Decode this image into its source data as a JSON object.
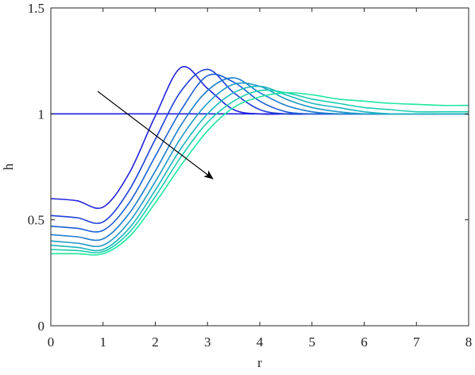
{
  "chart_data": {
    "type": "line",
    "x_label": "r",
    "y_label": "h",
    "x": [
      0,
      0.5,
      1,
      1.5,
      2,
      2.5,
      3,
      3.5,
      4,
      4.5,
      5,
      5.5,
      6,
      6.5,
      7,
      7.5,
      8
    ],
    "series": [
      {
        "color": "#2020dd",
        "values": [
          1,
          1,
          1,
          1,
          1,
          1,
          1,
          1,
          1,
          1,
          1,
          1,
          1,
          1,
          1,
          1,
          1
        ]
      },
      {
        "color": "#2222dd",
        "values": [
          0.6,
          0.59,
          0.56,
          0.72,
          0.99,
          1.22,
          1.12,
          1.02,
          1.0,
          1.0,
          1.0,
          1.0,
          1.0,
          1.0,
          1.0,
          1.0,
          1.0
        ]
      },
      {
        "color": "#1f3fd8",
        "values": [
          0.52,
          0.51,
          0.49,
          0.64,
          0.88,
          1.11,
          1.21,
          1.1,
          1.02,
          1.0,
          1.0,
          1.0,
          1.0,
          1.0,
          1.0,
          1.0,
          1.0
        ]
      },
      {
        "color": "#1d5ed3",
        "values": [
          0.47,
          0.46,
          0.45,
          0.58,
          0.8,
          1.02,
          1.18,
          1.15,
          1.06,
          1.01,
          1.0,
          1.0,
          1.0,
          1.0,
          1.0,
          1.0,
          1.0
        ]
      },
      {
        "color": "#1c7cce",
        "values": [
          0.43,
          0.42,
          0.41,
          0.53,
          0.73,
          0.95,
          1.11,
          1.17,
          1.1,
          1.04,
          1.01,
          1.0,
          1.0,
          1.0,
          1.0,
          1.0,
          1.0
        ]
      },
      {
        "color": "#1b99c6",
        "values": [
          0.4,
          0.39,
          0.38,
          0.49,
          0.68,
          0.89,
          1.05,
          1.14,
          1.13,
          1.07,
          1.03,
          1.01,
          1.0,
          1.0,
          1.0,
          1.0,
          1.0
        ]
      },
      {
        "color": "#1ab6bd",
        "values": [
          0.38,
          0.37,
          0.36,
          0.46,
          0.64,
          0.84,
          1.0,
          1.1,
          1.13,
          1.09,
          1.05,
          1.03,
          1.01,
          1.0,
          1.0,
          1.0,
          1.0
        ]
      },
      {
        "color": "#19ceb0",
        "values": [
          0.36,
          0.355,
          0.35,
          0.44,
          0.61,
          0.8,
          0.96,
          1.06,
          1.11,
          1.1,
          1.07,
          1.05,
          1.03,
          1.02,
          1.01,
          1.01,
          1.01
        ]
      },
      {
        "color": "#1ee6a0",
        "values": [
          0.34,
          0.34,
          0.34,
          0.42,
          0.58,
          0.76,
          0.92,
          1.03,
          1.08,
          1.1,
          1.09,
          1.07,
          1.06,
          1.05,
          1.045,
          1.04,
          1.04
        ]
      }
    ],
    "xlim": [
      0,
      8
    ],
    "xticks": [
      0,
      1,
      2,
      3,
      4,
      5,
      6,
      7,
      8
    ],
    "ylim": [
      0,
      1.5
    ],
    "yticks": [
      0,
      0.5,
      1,
      1.5
    ],
    "grid": false
  }
}
